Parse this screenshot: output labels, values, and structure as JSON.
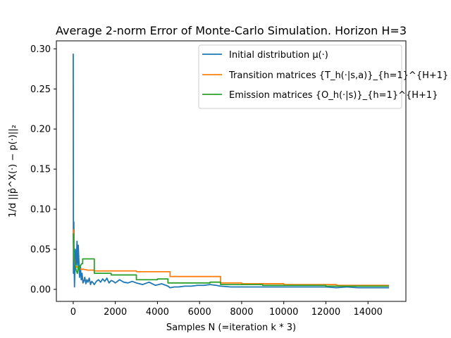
{
  "chart_data": {
    "type": "line",
    "title": "Average 2-norm Error of Monte-Carlo Simulation. Horizon H=3",
    "xlabel": "Samples N (=iteration k * 3)",
    "ylabel": "1/d ||p̂^X(·) − p(·)||₂",
    "xlim": [
      -800,
      15800
    ],
    "ylim": [
      -0.015,
      0.31
    ],
    "xticks": [
      0,
      2000,
      4000,
      6000,
      8000,
      10000,
      12000,
      14000
    ],
    "yticks": [
      0.0,
      0.05,
      0.1,
      0.15,
      0.2,
      0.25,
      0.3
    ],
    "xtick_labels": [
      "0",
      "2000",
      "4000",
      "6000",
      "8000",
      "10000",
      "12000",
      "14000"
    ],
    "ytick_labels": [
      "0.00",
      "0.05",
      "0.10",
      "0.15",
      "0.20",
      "0.25",
      "0.30"
    ],
    "grid": false,
    "legend_position": "top-right",
    "series": [
      {
        "name": "Initial distribution μ(·)",
        "color": "#1f77b4",
        "x": [
          0,
          10,
          20,
          30,
          40,
          60,
          80,
          100,
          120,
          150,
          180,
          210,
          240,
          270,
          300,
          340,
          380,
          420,
          460,
          500,
          550,
          600,
          650,
          700,
          760,
          820,
          880,
          950,
          1000,
          1100,
          1200,
          1300,
          1400,
          1500,
          1600,
          1700,
          1800,
          1900,
          2000,
          2200,
          2400,
          2600,
          2800,
          3000,
          3300,
          3600,
          3900,
          4200,
          4500,
          4600,
          4800,
          5000,
          5300,
          5600,
          5900,
          6200,
          6500,
          6800,
          7000,
          7500,
          8000,
          8500,
          9000,
          9500,
          10000,
          10500,
          11000,
          11500,
          12000,
          12500,
          13000,
          13500,
          14000,
          14500,
          15000
        ],
        "y": [
          0.294,
          0.02,
          0.07,
          0.084,
          0.04,
          0.003,
          0.03,
          0.05,
          0.025,
          0.035,
          0.06,
          0.03,
          0.055,
          0.035,
          0.015,
          0.03,
          0.012,
          0.02,
          0.008,
          0.01,
          0.015,
          0.007,
          0.012,
          0.009,
          0.014,
          0.006,
          0.01,
          0.008,
          0.006,
          0.01,
          0.012,
          0.009,
          0.013,
          0.01,
          0.014,
          0.008,
          0.011,
          0.01,
          0.008,
          0.012,
          0.009,
          0.008,
          0.01,
          0.008,
          0.006,
          0.009,
          0.005,
          0.007,
          0.004,
          0.002,
          0.003,
          0.003,
          0.004,
          0.004,
          0.005,
          0.005,
          0.006,
          0.005,
          0.004,
          0.003,
          0.003,
          0.003,
          0.003,
          0.003,
          0.003,
          0.003,
          0.003,
          0.003,
          0.003,
          0.002,
          0.003,
          0.002,
          0.002,
          0.002,
          0.002
        ]
      },
      {
        "name": "Transition matrices {T_h(·|s,a)}_{h=1}^{H+1}",
        "color": "#ff7f0e",
        "x": [
          0,
          20,
          40,
          60,
          80,
          100,
          150,
          200,
          250,
          300,
          400,
          500,
          700,
          1000,
          1000,
          2000,
          2000,
          3000,
          3000,
          4600,
          4600,
          7000,
          7000,
          8000,
          8000,
          10000,
          10000,
          12500,
          12500,
          15000
        ],
        "y": [
          0.075,
          0.055,
          0.04,
          0.035,
          0.03,
          0.03,
          0.028,
          0.028,
          0.027,
          0.026,
          0.025,
          0.025,
          0.024,
          0.024,
          0.023,
          0.023,
          0.023,
          0.023,
          0.022,
          0.022,
          0.016,
          0.016,
          0.008,
          0.008,
          0.007,
          0.007,
          0.006,
          0.006,
          0.005,
          0.005
        ]
      },
      {
        "name": "Emission matrices {O_h(·|s)}_{h=1}^{H+1}",
        "color": "#2ca02c",
        "x": [
          0,
          20,
          50,
          80,
          120,
          160,
          200,
          250,
          300,
          350,
          400,
          450,
          450,
          1000,
          1000,
          1800,
          1800,
          3000,
          3000,
          4000,
          4000,
          4500,
          4500,
          6500,
          6500,
          7000,
          7000,
          9000,
          9000,
          12000,
          12000,
          15000
        ],
        "y": [
          0.07,
          0.05,
          0.035,
          0.03,
          0.026,
          0.022,
          0.02,
          0.03,
          0.025,
          0.03,
          0.032,
          0.032,
          0.038,
          0.038,
          0.02,
          0.02,
          0.018,
          0.018,
          0.012,
          0.012,
          0.013,
          0.013,
          0.008,
          0.008,
          0.009,
          0.009,
          0.006,
          0.006,
          0.005,
          0.005,
          0.004,
          0.004
        ]
      }
    ]
  }
}
